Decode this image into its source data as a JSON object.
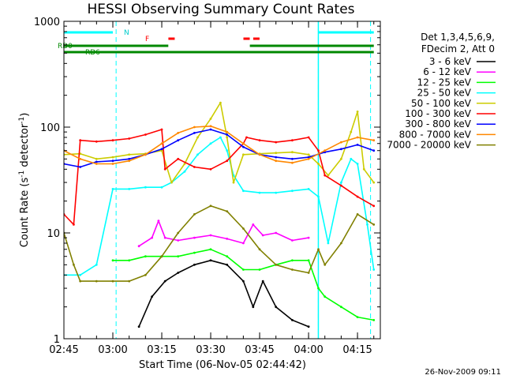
{
  "chart_data": {
    "type": "line",
    "title": "HESSI Observing Summary Count Rates",
    "xlabel": "Start Time (06-Nov-05 02:44:42)",
    "ylabel_prefix": "Count Rate (s",
    "ylabel_exp1": "-1",
    "ylabel_mid": " detector",
    "ylabel_exp2": "-1",
    "ylabel_suffix": ")",
    "y_scale": "log",
    "ylim": [
      1,
      1000
    ],
    "xlim": [
      "02:45",
      "04:22"
    ],
    "x_ticks": [
      "02:45",
      "03:00",
      "03:15",
      "03:30",
      "03:45",
      "04:00",
      "04:15"
    ],
    "y_ticks": [
      "1",
      "10",
      "100",
      "1000"
    ],
    "grid": false,
    "legend_position": "right",
    "legend_header": [
      "Det 1,3,4,5,6,9,",
      "FDecim 2, Att 0"
    ],
    "footer_date": "26-Nov-2009 09:11",
    "night_boundaries": [
      "03:01",
      "04:03",
      "04:19"
    ],
    "saa_boundaries": [
      "04:03"
    ],
    "flags": {
      "N_label": "N",
      "F_label": "F",
      "RD0_label": "RD0",
      "RD6_label": "RD6",
      "night": [
        [
          "02:45",
          "03:00"
        ],
        [
          "04:03",
          "04:20"
        ]
      ],
      "flare_markers": [
        "03:18",
        "03:41",
        "03:44"
      ],
      "rd0": [
        [
          "02:45",
          "03:17"
        ],
        [
          "03:42",
          "04:20"
        ]
      ],
      "rd6": [
        [
          "02:45",
          "04:20"
        ]
      ]
    },
    "series": [
      {
        "name": "3 - 6 keV",
        "color": "#000000",
        "x": [
          "02:45",
          "03:00",
          "03:03",
          "03:08",
          "03:12",
          "03:16",
          "03:20",
          "03:25",
          "03:30",
          "03:35",
          "03:40",
          "03:43",
          "03:46",
          "03:50",
          "03:55",
          "04:00",
          "04:05",
          "04:10",
          "04:15",
          "04:20"
        ],
        "y": [
          null,
          null,
          null,
          1.3,
          2.5,
          3.5,
          4.2,
          5.0,
          5.5,
          5.0,
          3.5,
          2.0,
          3.5,
          2.0,
          1.5,
          1.3,
          null,
          null,
          null,
          null
        ]
      },
      {
        "name": "6 - 12 keV",
        "color": "#ff00ff",
        "x": [
          "02:45",
          "03:00",
          "03:03",
          "03:08",
          "03:12",
          "03:14",
          "03:16",
          "03:20",
          "03:25",
          "03:30",
          "03:35",
          "03:40",
          "03:43",
          "03:46",
          "03:50",
          "03:55",
          "04:00",
          "04:03"
        ],
        "y": [
          null,
          null,
          null,
          7.5,
          9.0,
          13.0,
          9.0,
          8.5,
          9.0,
          9.5,
          8.8,
          8.0,
          12.0,
          9.5,
          10.0,
          8.5,
          9.0,
          null
        ]
      },
      {
        "name": "12 - 25 keV",
        "color": "#00ff00",
        "x": [
          "02:45",
          "02:50",
          "02:55",
          "03:00",
          "03:05",
          "03:10",
          "03:15",
          "03:20",
          "03:25",
          "03:30",
          "03:35",
          "03:40",
          "03:45",
          "03:50",
          "03:55",
          "04:00",
          "04:03",
          "04:05",
          "04:10",
          "04:15",
          "04:20"
        ],
        "y": [
          null,
          null,
          null,
          5.5,
          5.5,
          6.0,
          6.0,
          6.0,
          6.5,
          7.0,
          6.0,
          4.5,
          4.5,
          5.0,
          5.5,
          5.5,
          3.0,
          2.5,
          2.0,
          1.6,
          1.5
        ]
      },
      {
        "name": "25 - 50 keV",
        "color": "#00ffff",
        "x": [
          "02:45",
          "02:50",
          "02:55",
          "03:00",
          "03:05",
          "03:10",
          "03:15",
          "03:18",
          "03:22",
          "03:26",
          "03:30",
          "03:33",
          "03:35",
          "03:37",
          "03:40",
          "03:45",
          "03:50",
          "03:55",
          "04:00",
          "04:03",
          "04:06",
          "04:10",
          "04:13",
          "04:15",
          "04:18",
          "04:20"
        ],
        "y": [
          4.0,
          4.0,
          5.0,
          26.0,
          26.0,
          27.0,
          27.0,
          30.0,
          38.0,
          55.0,
          70.0,
          80.0,
          60.0,
          35.0,
          25.0,
          24.0,
          24.0,
          25.0,
          26.0,
          22.0,
          8.0,
          30.0,
          50.0,
          45.0,
          12.0,
          4.5
        ]
      },
      {
        "name": "50 - 100 keV",
        "color": "#cccc00",
        "x": [
          "02:45",
          "02:50",
          "02:55",
          "03:00",
          "03:05",
          "03:10",
          "03:15",
          "03:18",
          "03:22",
          "03:26",
          "03:30",
          "03:33",
          "03:35",
          "03:37",
          "03:40",
          "03:45",
          "03:50",
          "03:55",
          "04:00",
          "04:03",
          "04:06",
          "04:10",
          "04:13",
          "04:15",
          "04:17",
          "04:20"
        ],
        "y": [
          55.0,
          56.0,
          50.0,
          52.0,
          55.0,
          56.0,
          60.0,
          30.0,
          45.0,
          80.0,
          120.0,
          170.0,
          80.0,
          30.0,
          55.0,
          56.0,
          57.0,
          58.0,
          55.0,
          45.0,
          35.0,
          50.0,
          90.0,
          140.0,
          40.0,
          30.0
        ]
      },
      {
        "name": "100 - 300 keV",
        "color": "#ff0000",
        "x": [
          "02:45",
          "02:48",
          "02:50",
          "02:55",
          "03:00",
          "03:05",
          "03:10",
          "03:15",
          "03:16",
          "03:20",
          "03:25",
          "03:30",
          "03:35",
          "03:40",
          "03:41",
          "03:45",
          "03:50",
          "03:55",
          "04:00",
          "04:03",
          "04:05",
          "04:10",
          "04:15",
          "04:20"
        ],
        "y": [
          15.0,
          12.0,
          75.0,
          73.0,
          75.0,
          78.0,
          85.0,
          95.0,
          40.0,
          50.0,
          42.0,
          40.0,
          48.0,
          70.0,
          80.0,
          75.0,
          72.0,
          75.0,
          80.0,
          60.0,
          35.0,
          28.0,
          22.0,
          18.0
        ]
      },
      {
        "name": "300 - 800 keV",
        "color": "#0000ff",
        "x": [
          "02:45",
          "02:50",
          "02:55",
          "03:00",
          "03:05",
          "03:10",
          "03:15",
          "03:20",
          "03:25",
          "03:30",
          "03:35",
          "03:40",
          "03:45",
          "03:50",
          "03:55",
          "04:00",
          "04:05",
          "04:10",
          "04:15",
          "04:20"
        ],
        "y": [
          45.0,
          42.0,
          47.0,
          48.0,
          50.0,
          55.0,
          62.0,
          75.0,
          88.0,
          95.0,
          85.0,
          65.0,
          55.0,
          52.0,
          50.0,
          52.0,
          58.0,
          62.0,
          68.0,
          60.0
        ]
      },
      {
        "name": "800 - 7000 keV",
        "color": "#ff8800",
        "x": [
          "02:45",
          "02:50",
          "02:55",
          "03:00",
          "03:05",
          "03:10",
          "03:15",
          "03:20",
          "03:25",
          "03:30",
          "03:35",
          "03:40",
          "03:45",
          "03:50",
          "03:55",
          "04:00",
          "04:05",
          "04:10",
          "04:15",
          "04:20"
        ],
        "y": [
          60.0,
          50.0,
          45.0,
          45.0,
          48.0,
          55.0,
          70.0,
          88.0,
          100.0,
          102.0,
          90.0,
          70.0,
          55.0,
          48.0,
          46.0,
          50.0,
          60.0,
          72.0,
          80.0,
          75.0
        ]
      },
      {
        "name": "7000 - 20000 keV",
        "color": "#808000",
        "x": [
          "02:45",
          "02:48",
          "02:50",
          "02:55",
          "03:00",
          "03:05",
          "03:10",
          "03:15",
          "03:20",
          "03:25",
          "03:30",
          "03:35",
          "03:40",
          "03:45",
          "03:50",
          "03:55",
          "04:00",
          "04:03",
          "04:05",
          "04:10",
          "04:15",
          "04:20"
        ],
        "y": [
          10.0,
          5.0,
          3.5,
          3.5,
          3.5,
          3.5,
          4.0,
          6.0,
          10.0,
          15.0,
          18.0,
          16.0,
          11.0,
          7.0,
          5.0,
          4.5,
          4.2,
          7.0,
          5.0,
          8.0,
          15.0,
          12.0
        ]
      }
    ]
  }
}
